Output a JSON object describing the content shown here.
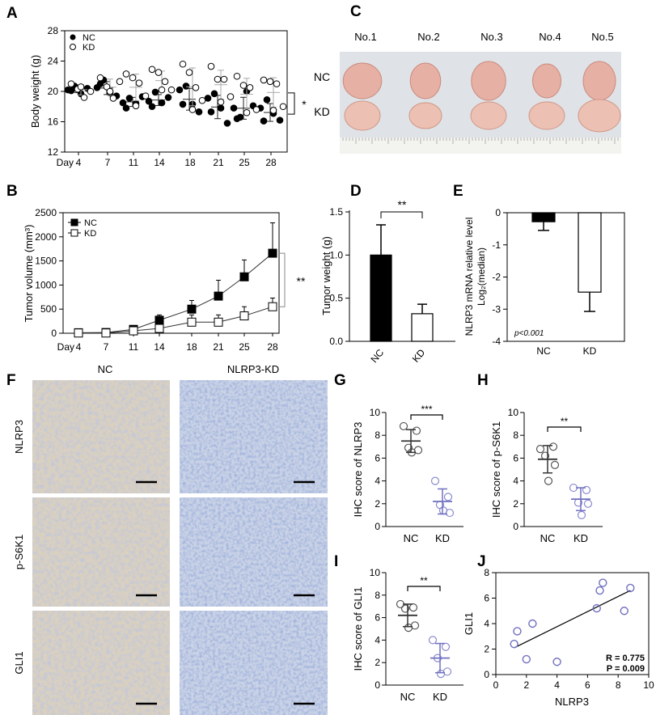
{
  "panel_labels": [
    "A",
    "B",
    "C",
    "D",
    "E",
    "F",
    "G",
    "H",
    "I",
    "J"
  ],
  "photo_C": {
    "columns": [
      "No.1",
      "No.2",
      "No.3",
      "No.4",
      "No.5"
    ],
    "rows": [
      "NC",
      "KD"
    ]
  },
  "ihc_F": {
    "columns": [
      "NC",
      "NLRP3-KD"
    ],
    "rows": [
      "NLRP3",
      "p-S6K1",
      "GLI1"
    ]
  },
  "chart_data": [
    {
      "panel": "A",
      "type": "scatter",
      "ylabel": "Body weight (g)",
      "ylim": [
        12,
        28
      ],
      "yticks": [
        "12",
        "16",
        "20",
        "24",
        "28"
      ],
      "xlabel_prefix": "Day",
      "categories": [
        "4",
        "7",
        "11",
        "14",
        "18",
        "21",
        "25",
        "28"
      ],
      "legend": "top-left",
      "series": [
        {
          "name": "NC",
          "marker": "filled-circle",
          "color": "#000000",
          "values": [
            [
              20.2,
              20.7,
              19.7,
              20.4,
              20.1
            ],
            [
              20.5,
              21.5,
              19.8,
              19.4,
              21.0
            ],
            [
              18.5,
              19.1,
              18.4,
              19.3,
              17.8
            ],
            [
              18.7,
              19.9,
              18.5,
              19.2,
              18.0
            ],
            [
              20.2,
              20.7,
              18.3,
              17.3,
              18.3
            ],
            [
              19.1,
              19.7,
              17.8,
              15.8,
              17.3
            ],
            [
              17.8,
              16.6,
              20.0,
              18.1,
              16.4
            ],
            [
              17.8,
              18.9,
              17.1,
              16.2,
              16.1
            ]
          ]
        },
        {
          "name": "KD",
          "marker": "open-circle",
          "color": "#000000",
          "values": [
            [
              21.0,
              20.3,
              19.2,
              20.0,
              20.6
            ],
            [
              21.8,
              20.6,
              19.1,
              21.3,
              20.0
            ],
            [
              22.3,
              21.8,
              21.1,
              19.4,
              18.1
            ],
            [
              22.9,
              22.5,
              21.3,
              20.2,
              20.2
            ],
            [
              23.6,
              22.5,
              20.5,
              18.8,
              17.6
            ],
            [
              23.3,
              21.6,
              21.6,
              19.3,
              18.6
            ],
            [
              22.0,
              20.8,
              20.5,
              17.6,
              17.2
            ],
            [
              21.5,
              21.3,
              21.0,
              18.0,
              17.5
            ]
          ]
        }
      ],
      "significance": "*"
    },
    {
      "panel": "B",
      "type": "line",
      "ylabel": "Tumor volume (mm³)",
      "ylim": [
        0,
        2500
      ],
      "yticks": [
        "0",
        "500",
        "1000",
        "1500",
        "2000",
        "2500"
      ],
      "xlabel_prefix": "Day",
      "categories": [
        "4",
        "7",
        "11",
        "14",
        "18",
        "21",
        "25",
        "28"
      ],
      "legend": "top-left",
      "series": [
        {
          "name": "NC",
          "marker": "filled-square",
          "values": [
            10,
            15,
            80,
            270,
            500,
            770,
            1170,
            1660
          ],
          "sd": [
            0,
            0,
            10,
            110,
            180,
            330,
            350,
            630
          ]
        },
        {
          "name": "KD",
          "marker": "open-square",
          "values": [
            5,
            5,
            50,
            100,
            230,
            230,
            360,
            550
          ],
          "sd": [
            0,
            0,
            10,
            30,
            150,
            150,
            190,
            180
          ]
        }
      ],
      "significance": "**"
    },
    {
      "panel": "D",
      "type": "bar",
      "ylabel": "Tumor weight (g)",
      "ylim": [
        0,
        1.5
      ],
      "yticks": [
        "0.0",
        "0.5",
        "1.0",
        "1.5"
      ],
      "categories": [
        "NC",
        "KD"
      ],
      "values": [
        1.0,
        0.32
      ],
      "sd": [
        0.35,
        0.11
      ],
      "colors": [
        "#000000",
        "#ffffff"
      ],
      "significance": "**"
    },
    {
      "panel": "E",
      "type": "bar",
      "ylabel": [
        "NLRP3 mRNA relative level",
        "Log₂(median)"
      ],
      "ylim": [
        -4,
        0
      ],
      "yticks": [
        "0",
        "-1",
        "-2",
        "-3",
        "-4"
      ],
      "categories": [
        "NC",
        "KD"
      ],
      "values": [
        -0.28,
        -2.47
      ],
      "sd": [
        0.27,
        0.6
      ],
      "colors": [
        "#000000",
        "#ffffff"
      ],
      "annotation": "p<0.001"
    },
    {
      "panel": "G",
      "type": "scatter",
      "ylabel": "IHC score of NLRP3",
      "ylim": [
        0,
        10
      ],
      "yticks": [
        "0",
        "2",
        "4",
        "6",
        "8",
        "10"
      ],
      "categories": [
        "NC",
        "KD"
      ],
      "series": [
        {
          "name": "NC",
          "values": [
            8.8,
            8.4,
            6.9,
            6.7,
            6.5
          ],
          "mean": 7.5,
          "sd": 1.0,
          "color": "#333333"
        },
        {
          "name": "KD",
          "values": [
            4.0,
            2.6,
            1.9,
            1.2,
            1.4
          ],
          "mean": 2.2,
          "sd": 1.1,
          "color": "#7070c0"
        }
      ],
      "significance": "***"
    },
    {
      "panel": "H",
      "type": "scatter",
      "ylabel": "IHC score of p-S6K1",
      "ylim": [
        0,
        10
      ],
      "yticks": [
        "0",
        "2",
        "4",
        "6",
        "8",
        "10"
      ],
      "categories": [
        "NC",
        "KD"
      ],
      "series": [
        {
          "name": "NC",
          "values": [
            6.8,
            7.0,
            6.2,
            5.4,
            4.0
          ],
          "mean": 5.9,
          "sd": 1.2,
          "color": "#333333"
        },
        {
          "name": "KD",
          "values": [
            3.4,
            3.2,
            2.1,
            2.0,
            1.0
          ],
          "mean": 2.4,
          "sd": 1.0,
          "color": "#7070c0"
        }
      ],
      "significance": "**"
    },
    {
      "panel": "I",
      "type": "scatter",
      "ylabel": "IHC score of GLI1",
      "ylim": [
        0,
        10
      ],
      "yticks": [
        "0",
        "2",
        "4",
        "6",
        "8",
        "10"
      ],
      "categories": [
        "NC",
        "KD"
      ],
      "series": [
        {
          "name": "NC",
          "values": [
            7.2,
            6.9,
            6.8,
            5.3,
            5.1
          ],
          "mean": 6.2,
          "sd": 1.0,
          "color": "#333333"
        },
        {
          "name": "KD",
          "values": [
            4.0,
            3.4,
            2.4,
            1.2,
            1.0
          ],
          "mean": 2.4,
          "sd": 1.3,
          "color": "#7070c0"
        }
      ],
      "significance": "**"
    },
    {
      "panel": "J",
      "type": "scatter",
      "xlabel": "NLRP3",
      "ylabel": "GLI1",
      "xlim": [
        0,
        10
      ],
      "ylim": [
        0,
        8
      ],
      "xticks": [
        "0",
        "2",
        "4",
        "6",
        "8",
        "10"
      ],
      "yticks": [
        "0",
        "2",
        "4",
        "6",
        "8"
      ],
      "points": [
        [
          1.2,
          2.4
        ],
        [
          1.4,
          3.4
        ],
        [
          2.0,
          1.2
        ],
        [
          2.4,
          4.0
        ],
        [
          4.0,
          1.0
        ],
        [
          6.6,
          5.2
        ],
        [
          6.8,
          6.6
        ],
        [
          7.0,
          7.2
        ],
        [
          8.4,
          5.0
        ],
        [
          8.8,
          6.8
        ]
      ],
      "fit": [
        [
          1.2,
          2.1
        ],
        [
          8.8,
          6.6
        ]
      ],
      "color": "#7070c0",
      "annotations": [
        "R = 0.775",
        "P = 0.009"
      ]
    }
  ]
}
